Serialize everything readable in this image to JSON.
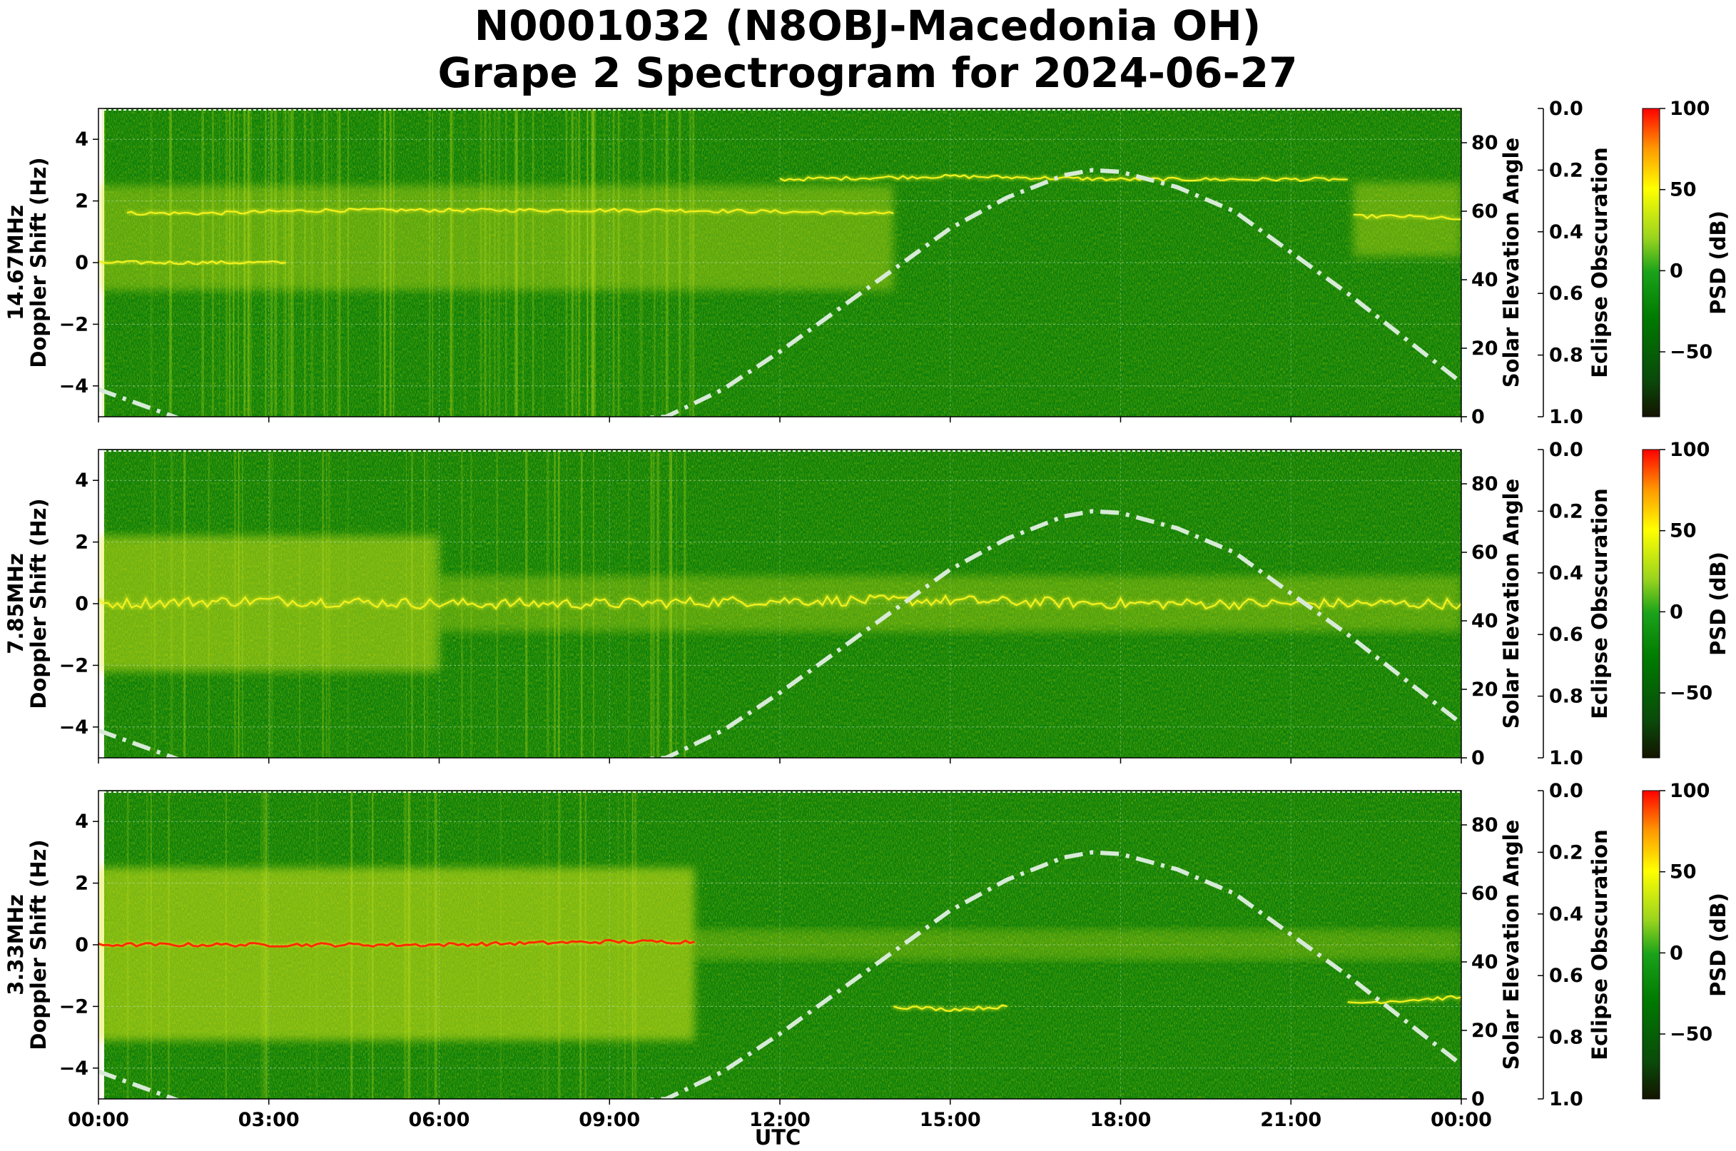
{
  "title": "N0001032 (N8OBJ-Macedonia OH)",
  "subtitle": "Grape 2 Spectrogram for 2024-06-27",
  "colors": {
    "background_green": "#0b7f0b",
    "signal_yellow": "#e6ee1a",
    "signal_red": "#ff2a00",
    "elevation_curve": "#d7ead7",
    "colorbar": [
      "#1a1a00",
      "#006400",
      "#008000",
      "#44a800",
      "#b5e61d",
      "#ffff00",
      "#ff8000",
      "#ff0000"
    ]
  },
  "chart_data": [
    {
      "type": "heatmap",
      "panel_label": "14.67MHz",
      "ylabel": "Doppler Shift (Hz)",
      "xlabel": "",
      "ylim": [
        -5,
        5
      ],
      "yticks": [
        "4",
        "2",
        "0",
        "−2",
        "−4"
      ],
      "y2label": "Solar Elevation Angle",
      "y2lim": [
        0,
        90
      ],
      "y2ticks": [
        "80",
        "60",
        "40",
        "20",
        "0"
      ],
      "y3label": "Eclipse Obscuration",
      "y3ticks": [
        "0.0",
        "0.2",
        "0.4",
        "0.6",
        "0.8",
        "1.0"
      ],
      "colorbar_label": "PSD (dB)",
      "colorbar_ticks": [
        "100",
        "50",
        "0",
        "−50"
      ],
      "clim": [
        -90,
        100
      ],
      "traces": [
        {
          "x": [
            0.5,
            2,
            4,
            6,
            8,
            10,
            14
          ],
          "y": [
            1.6,
            1.6,
            1.7,
            1.7,
            1.7,
            1.7,
            1.6
          ]
        },
        {
          "x": [
            0,
            1,
            2,
            3.3
          ],
          "y": [
            0.0,
            0.0,
            0.0,
            0.0
          ]
        },
        {
          "x": [
            12,
            15,
            18,
            21,
            22
          ],
          "y": [
            2.7,
            2.8,
            2.7,
            2.7,
            2.7
          ]
        },
        {
          "x": [
            22.1,
            23,
            24
          ],
          "y": [
            1.5,
            1.5,
            1.4
          ]
        }
      ]
    },
    {
      "type": "heatmap",
      "panel_label": "7.85MHz",
      "ylabel": "Doppler Shift (Hz)",
      "xlabel": "",
      "ylim": [
        -5,
        5
      ],
      "yticks": [
        "4",
        "2",
        "0",
        "−2",
        "−4"
      ],
      "y2label": "Solar Elevation Angle",
      "y2lim": [
        0,
        90
      ],
      "y2ticks": [
        "80",
        "60",
        "40",
        "20",
        "0"
      ],
      "y3label": "Eclipse Obscuration",
      "y3ticks": [
        "0.0",
        "0.2",
        "0.4",
        "0.6",
        "0.8",
        "1.0"
      ],
      "colorbar_label": "PSD (dB)",
      "colorbar_ticks": [
        "100",
        "50",
        "0",
        "−50"
      ],
      "clim": [
        -90,
        100
      ],
      "traces": [
        {
          "x": [
            0,
            3,
            6,
            9,
            12,
            15,
            18,
            21,
            24
          ],
          "y": [
            0.0,
            0.1,
            0.0,
            0.0,
            0.1,
            0.1,
            0.0,
            0.0,
            0.0
          ]
        }
      ]
    },
    {
      "type": "heatmap",
      "panel_label": "3.33MHz",
      "ylabel": "Doppler Shift (Hz)",
      "xlabel": "UTC",
      "ylim": [
        -5,
        5
      ],
      "yticks": [
        "4",
        "2",
        "0",
        "−2",
        "−4"
      ],
      "y2label": "Solar Elevation Angle",
      "y2lim": [
        0,
        90
      ],
      "y2ticks": [
        "80",
        "60",
        "40",
        "20",
        "0"
      ],
      "y3label": "Eclipse Obscuration",
      "y3ticks": [
        "0.0",
        "0.2",
        "0.4",
        "0.6",
        "0.8",
        "1.0"
      ],
      "colorbar_label": "PSD (dB)",
      "colorbar_ticks": [
        "100",
        "50",
        "0",
        "−50"
      ],
      "clim": [
        -90,
        100
      ],
      "traces": [
        {
          "x": [
            0,
            3,
            6,
            9,
            10.5
          ],
          "y": [
            0.0,
            0.0,
            0.0,
            0.1,
            0.1
          ]
        },
        {
          "x": [
            14,
            15,
            16
          ],
          "y": [
            -2.0,
            -2.1,
            -2.0
          ]
        },
        {
          "x": [
            22,
            23,
            24
          ],
          "y": [
            -1.9,
            -1.8,
            -1.7
          ]
        }
      ]
    }
  ],
  "x_axis": {
    "label": "UTC",
    "lim": [
      0,
      24
    ],
    "ticks": [
      0,
      3,
      6,
      9,
      12,
      15,
      18,
      21,
      24
    ],
    "tick_labels": [
      "00:00",
      "03:00",
      "06:00",
      "09:00",
      "12:00",
      "15:00",
      "18:00",
      "21:00",
      "00:00"
    ]
  },
  "solar_elevation": {
    "x": [
      0,
      1,
      2,
      3,
      4,
      5,
      6,
      7,
      8,
      9,
      10,
      11,
      12,
      13,
      14,
      15,
      16,
      17,
      17.5,
      18,
      19,
      20,
      21,
      22,
      23,
      24
    ],
    "y": [
      8,
      2,
      -4,
      -10,
      -14,
      -15,
      -12,
      -6,
      -1,
      -1,
      0,
      8,
      19,
      31,
      43,
      55,
      64,
      70.5,
      72,
      71.5,
      67,
      60,
      48,
      36,
      23,
      10
    ]
  }
}
